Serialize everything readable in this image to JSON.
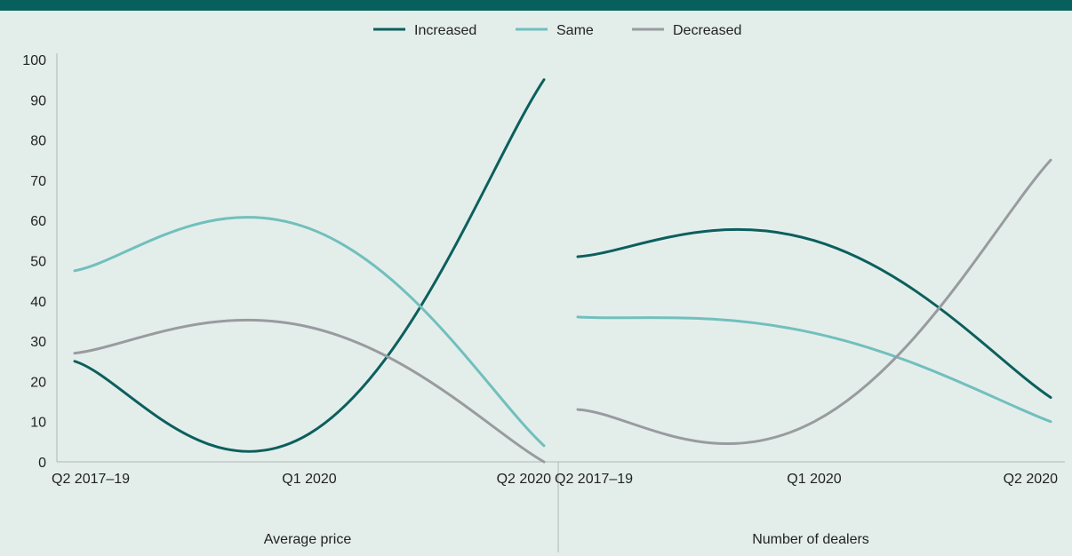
{
  "chart_data": {
    "type": "line",
    "colors": {
      "Increased": "#0c5f5d",
      "Same": "#72bfbd",
      "Decreased": "#999b9e"
    },
    "ylim": [
      0,
      100
    ],
    "yticks": [
      "0",
      "10",
      "20",
      "30",
      "40",
      "50",
      "60",
      "70",
      "80",
      "90",
      "100"
    ],
    "legend": [
      "Increased",
      "Same",
      "Decreased"
    ],
    "legend_position": "top-center",
    "panels": [
      {
        "label": "Average price",
        "categories": [
          "Q2 2017–19",
          "Q1 2020",
          "Q2 2020"
        ],
        "series": [
          {
            "name": "Increased",
            "values": [
              25,
              7,
              95
            ]
          },
          {
            "name": "Same",
            "values": [
              47.5,
              58,
              4
            ]
          },
          {
            "name": "Decreased",
            "values": [
              27,
              33.5,
              0
            ]
          }
        ]
      },
      {
        "label": "Number of dealers",
        "categories": [
          "Q2 2017–19",
          "Q1 2020",
          "Q2 2020"
        ],
        "series": [
          {
            "name": "Increased",
            "values": [
              51,
              55,
              16
            ]
          },
          {
            "name": "Same",
            "values": [
              36,
              32,
              10
            ]
          },
          {
            "name": "Decreased",
            "values": [
              13,
              10,
              75
            ]
          }
        ]
      }
    ]
  }
}
